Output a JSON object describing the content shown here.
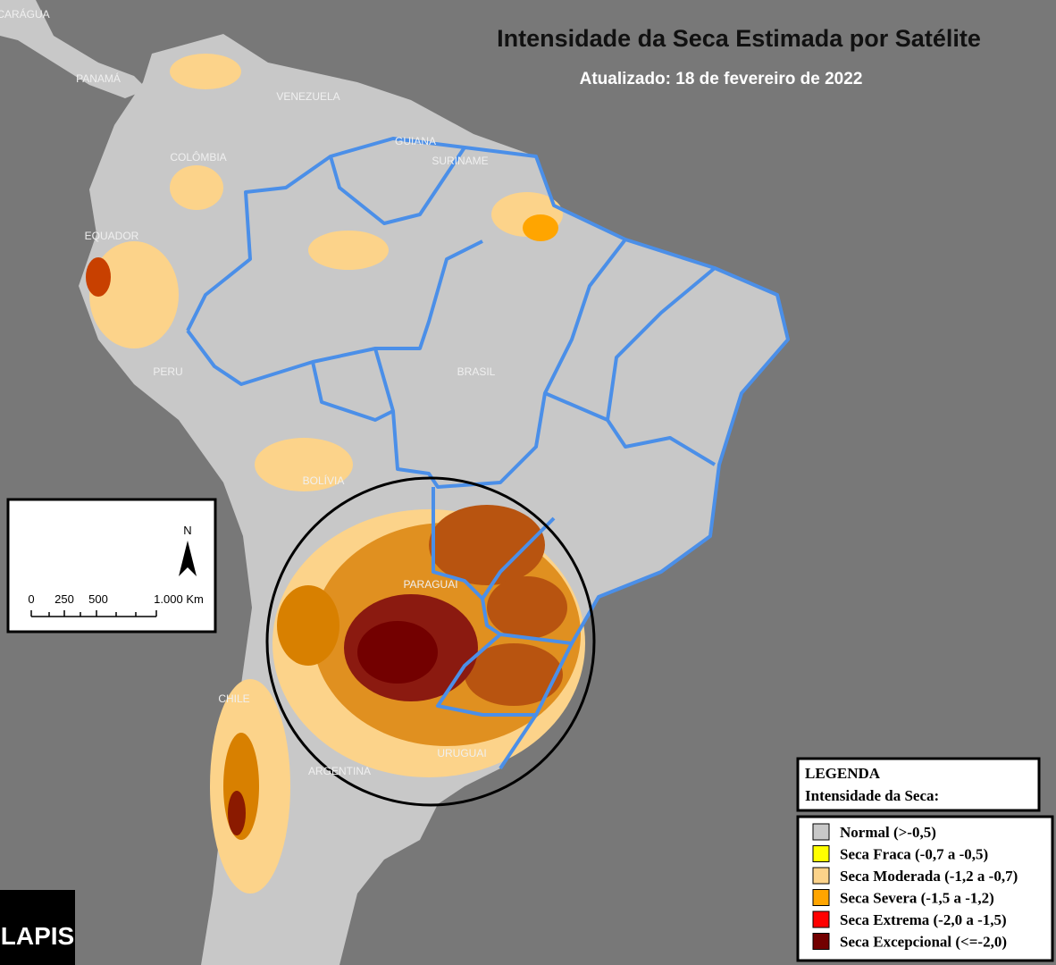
{
  "title": "Intensidade da Seca Estimada por Satélite",
  "subtitle": "Atualizado: 18 de fevereiro de 2022",
  "map_labels": [
    "NICARÁGUA",
    "PANAMÁ",
    "VENEZUELA",
    "GUIANA",
    "SURINAME",
    "COLÔMBIA",
    "EQUADOR",
    "PERU",
    "BRASIL",
    "BOLÍVIA",
    "PARAGUAI",
    "CHILE",
    "ARGENTINA",
    "URUGUAI"
  ],
  "scale": {
    "north": "N",
    "ticks": [
      "0",
      "250",
      "500",
      "1.000 Km"
    ]
  },
  "legend": {
    "title": "LEGENDA",
    "subtitle": "Intensidade da Seca:",
    "items": [
      {
        "label": "Normal (>-0,5)",
        "color": "#c8c8c8"
      },
      {
        "label": "Seca Fraca (-0,7 a -0,5)",
        "color": "#ffff00"
      },
      {
        "label": "Seca Moderada (-1,2 a -0,7)",
        "color": "#fcd38a"
      },
      {
        "label": "Seca Severa (-1,5 a -1,2)",
        "color": "#ffa500"
      },
      {
        "label": "Seca Extrema (-2,0 a -1,5)",
        "color": "#ff0000"
      },
      {
        "label": "Seca Excepcional (<=-2,0)",
        "color": "#730000"
      }
    ]
  },
  "logo": "LAPIS"
}
